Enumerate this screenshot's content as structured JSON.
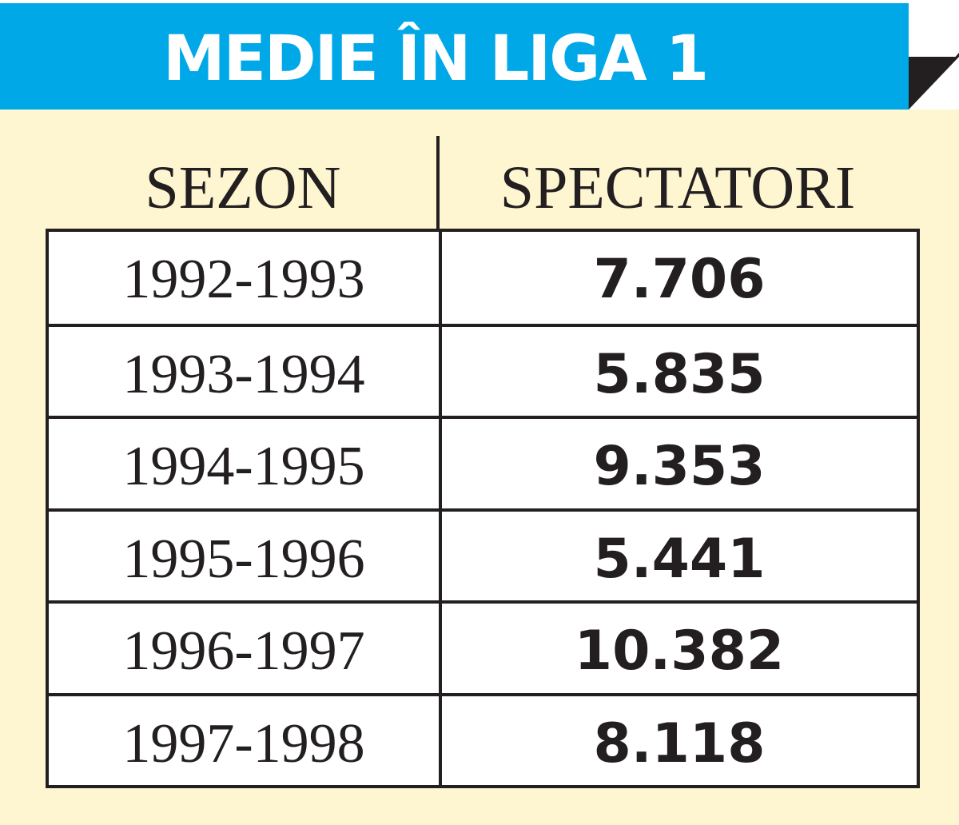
{
  "title": "MEDIE ÎN LIGA 1",
  "colors": {
    "title_band": "#00a8e8",
    "background": "#fdf6d1",
    "ink": "#231f20"
  },
  "chart_data": {
    "type": "table",
    "title": "MEDIE ÎN LIGA 1",
    "columns": [
      "SEZON",
      "SPECTATORI"
    ],
    "rows": [
      [
        "1992-1993",
        "7.706"
      ],
      [
        "1993-1994",
        "5.835"
      ],
      [
        "1994-1995",
        "9.353"
      ],
      [
        "1995-1996",
        "5.441"
      ],
      [
        "1996-1997",
        "10.382"
      ],
      [
        "1997-1998",
        "8.118"
      ]
    ]
  }
}
